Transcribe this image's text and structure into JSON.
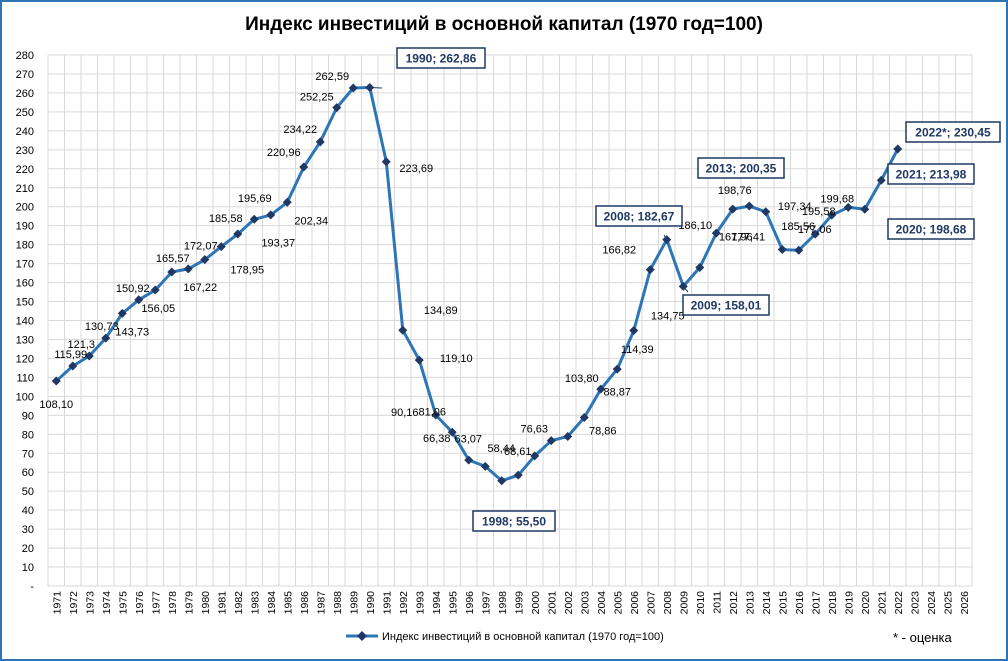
{
  "chart_data": {
    "type": "line",
    "title": "Индекс инвестиций в основной капитал (1970 год=100)",
    "footnote": "* - оценка",
    "series_name": "Индекс инвестиций в основной капитал (1970 год=100)",
    "series_color": "#2e75b6",
    "marker_color": "#1f3864",
    "ylim": [
      0,
      280
    ],
    "y_ticks": [
      "-",
      "10",
      "20",
      "30",
      "40",
      "50",
      "60",
      "70",
      "80",
      "90",
      "100",
      "110",
      "120",
      "130",
      "140",
      "150",
      "160",
      "170",
      "180",
      "190",
      "200",
      "210",
      "220",
      "230",
      "240",
      "250",
      "260",
      "270",
      "280"
    ],
    "categories": [
      "1971",
      "1972",
      "1973",
      "1974",
      "1975",
      "1976",
      "1977",
      "1978",
      "1979",
      "1980",
      "1981",
      "1982",
      "1983",
      "1984",
      "1985",
      "1986",
      "1987",
      "1988",
      "1989",
      "1990",
      "1991",
      "1992",
      "1993",
      "1994",
      "1995",
      "1996",
      "1997",
      "1998",
      "1999",
      "2000",
      "2001",
      "2002",
      "2003",
      "2004",
      "2005",
      "2006",
      "2007",
      "2008",
      "2009",
      "2010",
      "2011",
      "2012",
      "2013",
      "2014",
      "2015",
      "2016",
      "2017",
      "2018",
      "2019",
      "2020",
      "2021",
      "2022",
      "2023",
      "2024",
      "2025",
      "2026"
    ],
    "values": [
      108.1,
      115.99,
      121.3,
      130.73,
      143.73,
      150.92,
      156.05,
      165.57,
      167.22,
      172.07,
      178.95,
      185.58,
      193.37,
      195.69,
      202.34,
      220.96,
      234.22,
      252.25,
      262.59,
      262.86,
      223.69,
      134.89,
      119.1,
      90.16,
      81.06,
      66.38,
      63.07,
      55.5,
      58.44,
      68.61,
      76.63,
      78.86,
      88.87,
      103.8,
      114.39,
      134.75,
      166.82,
      182.67,
      158.01,
      167.96,
      186.1,
      198.76,
      200.35,
      197.34,
      177.41,
      177.06,
      185.56,
      195.58,
      199.68,
      198.68,
      213.98,
      230.45,
      null,
      null,
      null,
      null
    ],
    "data_labels": [
      {
        "i": 0,
        "text": "108,10"
      },
      {
        "i": 1,
        "text": "115,99"
      },
      {
        "i": 2,
        "text": "121,3"
      },
      {
        "i": 3,
        "text": "130,73"
      },
      {
        "i": 4,
        "text": "143,73"
      },
      {
        "i": 5,
        "text": "150,92"
      },
      {
        "i": 6,
        "text": "156,05"
      },
      {
        "i": 7,
        "text": "165,57"
      },
      {
        "i": 8,
        "text": "167,22"
      },
      {
        "i": 9,
        "text": "172,07"
      },
      {
        "i": 10,
        "text": "178,95"
      },
      {
        "i": 11,
        "text": "185,58"
      },
      {
        "i": 12,
        "text": "193,37"
      },
      {
        "i": 13,
        "text": "195,69"
      },
      {
        "i": 14,
        "text": "202,34"
      },
      {
        "i": 15,
        "text": "220,96"
      },
      {
        "i": 16,
        "text": "234,22"
      },
      {
        "i": 17,
        "text": "252,25"
      },
      {
        "i": 18,
        "text": "262,59"
      },
      {
        "i": 20,
        "text": "223,69"
      },
      {
        "i": 21,
        "text": "134,89"
      },
      {
        "i": 22,
        "text": "119,10"
      },
      {
        "i": 23,
        "text": "90,16"
      },
      {
        "i": 24,
        "text": "81,06"
      },
      {
        "i": 25,
        "text": "66,38"
      },
      {
        "i": 26,
        "text": "63,07"
      },
      {
        "i": 28,
        "text": "58,44"
      },
      {
        "i": 29,
        "text": "68,61"
      },
      {
        "i": 30,
        "text": "76,63"
      },
      {
        "i": 31,
        "text": "78,86"
      },
      {
        "i": 32,
        "text": "88,87"
      },
      {
        "i": 33,
        "text": "103,80"
      },
      {
        "i": 34,
        "text": "114,39"
      },
      {
        "i": 35,
        "text": "134,75"
      },
      {
        "i": 36,
        "text": "166,82"
      },
      {
        "i": 39,
        "text": "167,96"
      },
      {
        "i": 40,
        "text": "186,10"
      },
      {
        "i": 41,
        "text": "198,76"
      },
      {
        "i": 43,
        "text": "197,34"
      },
      {
        "i": 44,
        "text": "177,41"
      },
      {
        "i": 45,
        "text": "177,06"
      },
      {
        "i": 46,
        "text": "185,56"
      },
      {
        "i": 47,
        "text": "195,58"
      },
      {
        "i": 48,
        "text": "199,68"
      }
    ],
    "callouts": [
      {
        "i": 19,
        "text": "1990;  262,86"
      },
      {
        "i": 27,
        "text": "1998;  55,50"
      },
      {
        "i": 37,
        "text": "2008;  182,67"
      },
      {
        "i": 38,
        "text": "2009;  158,01"
      },
      {
        "i": 42,
        "text": "2013;  200,35"
      },
      {
        "i": 49,
        "text": "2020;  198,68"
      },
      {
        "i": 50,
        "text": "2021;  213,98"
      },
      {
        "i": 51,
        "text": "2022*;  230,45"
      }
    ]
  }
}
